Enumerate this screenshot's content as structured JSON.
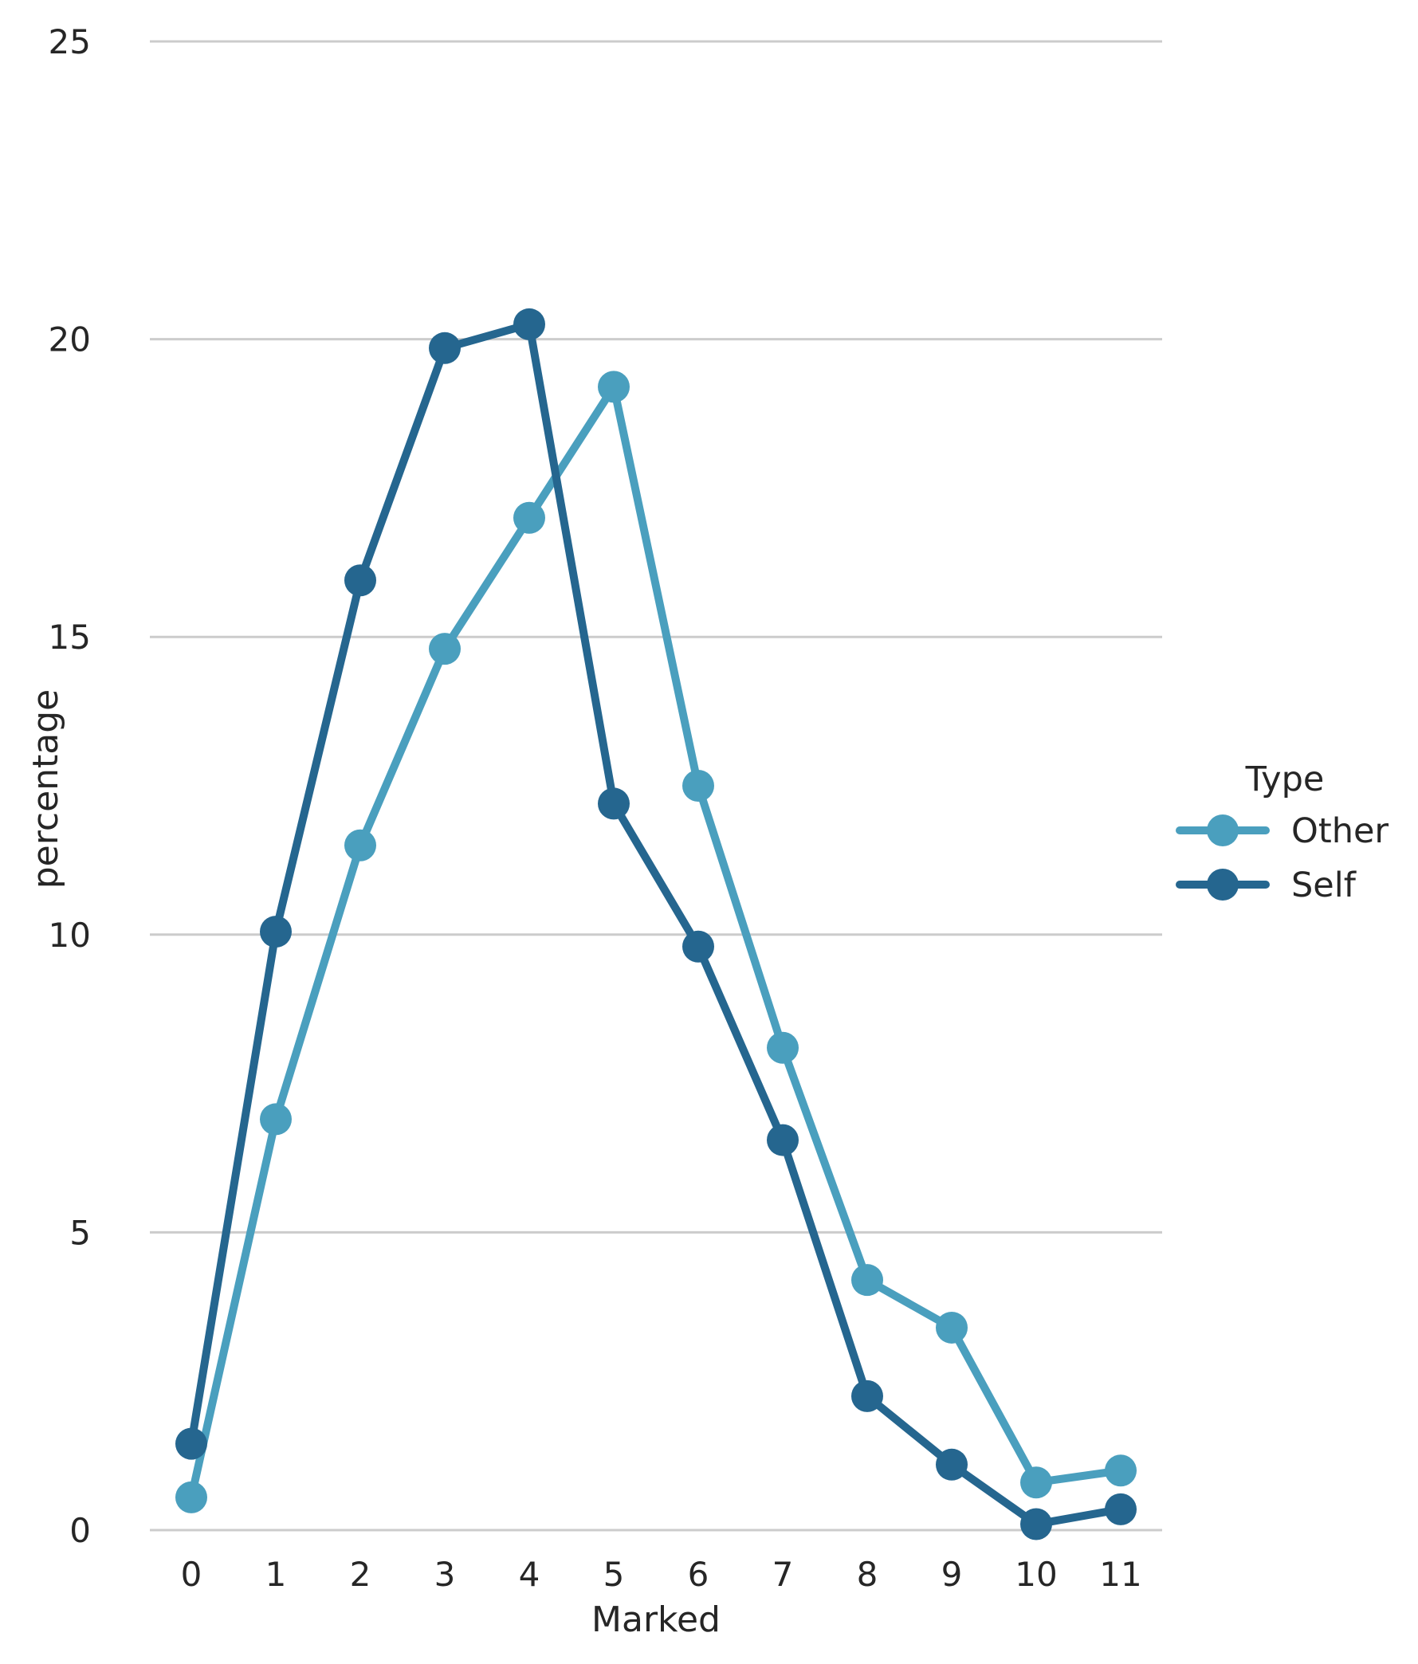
{
  "chart_data": {
    "type": "line",
    "xlabel": "Marked",
    "ylabel": "percentage",
    "x": [
      0,
      1,
      2,
      3,
      4,
      5,
      6,
      7,
      8,
      9,
      10,
      11
    ],
    "ylim": [
      0,
      25
    ],
    "yticks": [
      0,
      5,
      10,
      15,
      20,
      25
    ],
    "grid": "horizontal",
    "legend": {
      "title": "Type",
      "placement": "right",
      "entries": [
        "Other",
        "Self"
      ]
    },
    "series": [
      {
        "name": "Other",
        "color": "#4a9fbe",
        "values": [
          0.55,
          6.9,
          11.5,
          14.8,
          17.0,
          19.2,
          12.5,
          8.1,
          4.2,
          3.4,
          0.8,
          1.0
        ]
      },
      {
        "name": "Self",
        "color": "#25668f",
        "values": [
          1.45,
          10.05,
          15.95,
          19.85,
          20.25,
          12.2,
          9.8,
          6.55,
          2.25,
          1.1,
          0.1,
          0.35
        ]
      }
    ]
  }
}
